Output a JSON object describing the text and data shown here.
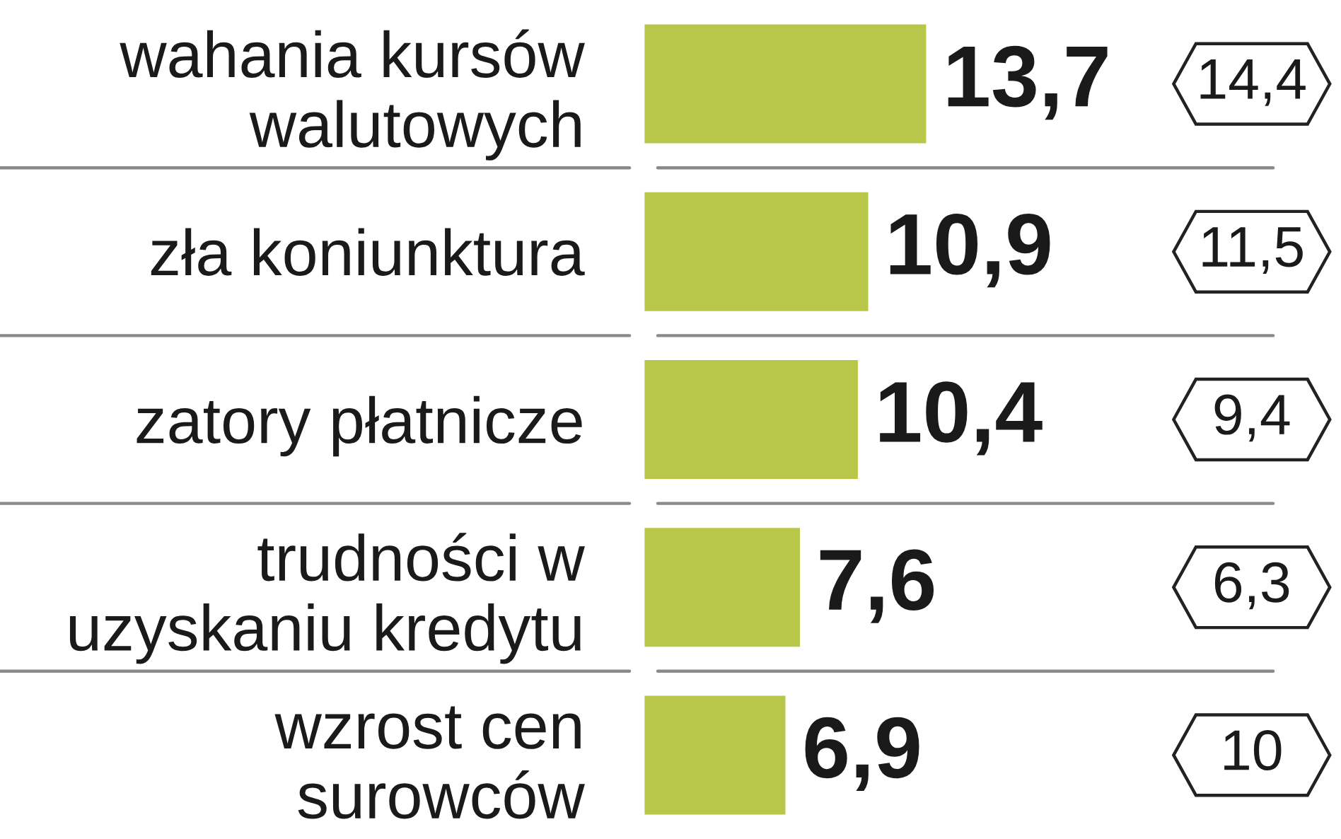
{
  "chart_data": {
    "type": "bar",
    "orientation": "horizontal",
    "categories": [
      "wahania kursów\nwalutowych",
      "zła koniunktura",
      "zatory płatnicze",
      "trudności w\nuzyskaniu kredytu",
      "wzrost cen\nsurowców"
    ],
    "series": [
      {
        "color": "#b8c74a",
        "values": [
          13.7,
          10.9,
          10.4,
          7.6,
          6.9
        ],
        "value_labels": [
          "13,7",
          "10,9",
          "10,4",
          "7,6",
          "6,9"
        ]
      }
    ],
    "annotations": [
      "14,4",
      "11,5",
      "9,4",
      "6,3",
      "10"
    ],
    "grid": "y",
    "tick_labels": "y"
  }
}
